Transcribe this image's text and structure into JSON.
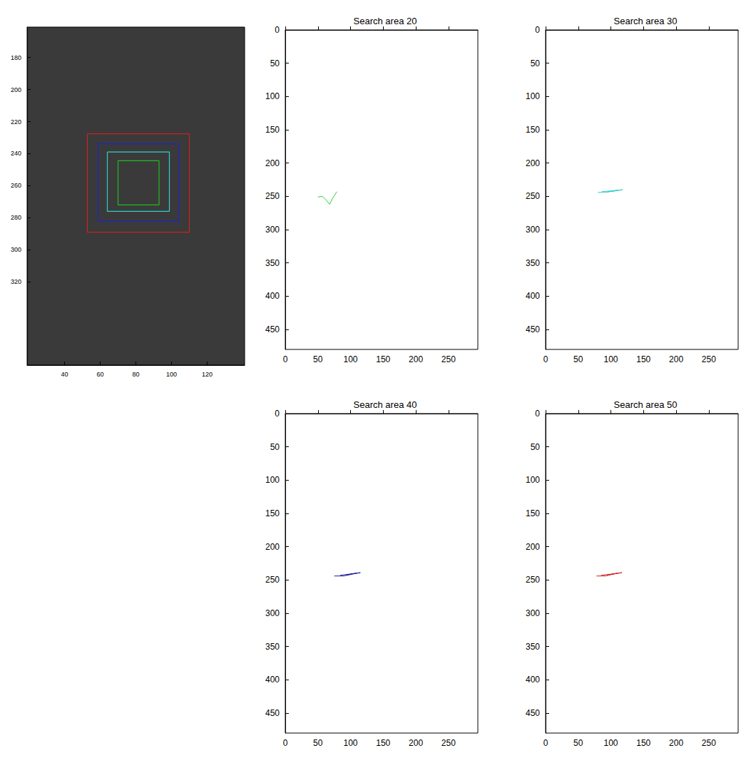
{
  "chart_data": [
    {
      "type": "image",
      "xlim": [
        19,
        141
      ],
      "ylim": [
        161,
        372
      ],
      "xticks": [
        40,
        60,
        80,
        100,
        120
      ],
      "yticks": [
        180,
        200,
        220,
        240,
        260,
        280,
        300,
        320
      ],
      "boxes": [
        {
          "color": "#cc2222",
          "x": [
            52.8,
            110
          ],
          "y": [
            227.6,
            289
          ]
        },
        {
          "color": "#2222cc",
          "x": [
            58.8,
            104
          ],
          "y": [
            233.8,
            282
          ]
        },
        {
          "color": "#33cccc",
          "x": [
            64,
            98.8
          ],
          "y": [
            239,
            276
          ]
        },
        {
          "color": "#22bb22",
          "x": [
            70,
            93
          ],
          "y": [
            244.4,
            272
          ]
        }
      ]
    },
    {
      "type": "line",
      "title": "Search area 20",
      "xlim": [
        0,
        295
      ],
      "ylim": [
        0,
        480
      ],
      "xticks": [
        0,
        50,
        100,
        150,
        200,
        250
      ],
      "yticks": [
        0,
        50,
        100,
        150,
        200,
        250,
        300,
        350,
        400,
        450
      ],
      "series": [
        {
          "color": "#33cc33",
          "x": [
            50,
            57,
            63,
            68,
            73,
            79
          ],
          "values": [
            251,
            250,
            256,
            262,
            252,
            243
          ]
        }
      ]
    },
    {
      "type": "line",
      "title": "Search area 30",
      "xlim": [
        0,
        295
      ],
      "ylim": [
        0,
        480
      ],
      "xticks": [
        0,
        50,
        100,
        150,
        200,
        250
      ],
      "yticks": [
        0,
        50,
        100,
        150,
        200,
        250,
        300,
        350,
        400,
        450
      ],
      "series": [
        {
          "color": "#33cccc",
          "x": [
            80,
            92,
            104,
            118,
            106,
            95,
            110,
            86
          ],
          "values": [
            244,
            244,
            242,
            240,
            242,
            243,
            241,
            243
          ]
        }
      ]
    },
    {
      "type": "line",
      "title": "Search area 40",
      "xlim": [
        0,
        295
      ],
      "ylim": [
        0,
        480
      ],
      "xticks": [
        0,
        50,
        100,
        150,
        200,
        250
      ],
      "yticks": [
        0,
        50,
        100,
        150,
        200,
        250,
        300,
        350,
        400,
        450
      ],
      "series": [
        {
          "color": "#1a1aa0",
          "x": [
            75,
            90,
            100,
            115,
            103,
            93,
            108,
            84
          ],
          "values": [
            244,
            244,
            241,
            239,
            241,
            243,
            240,
            243
          ]
        }
      ]
    },
    {
      "type": "line",
      "title": "Search area 50",
      "xlim": [
        0,
        295
      ],
      "ylim": [
        0,
        480
      ],
      "xticks": [
        0,
        50,
        100,
        150,
        200,
        250
      ],
      "yticks": [
        0,
        50,
        100,
        150,
        200,
        250,
        300,
        350,
        400,
        450
      ],
      "series": [
        {
          "color": "#cc2222",
          "x": [
            78,
            92,
            102,
            117,
            104,
            94,
            110,
            85
          ],
          "values": [
            244,
            244,
            241,
            239,
            241,
            243,
            240,
            243
          ]
        }
      ]
    }
  ]
}
